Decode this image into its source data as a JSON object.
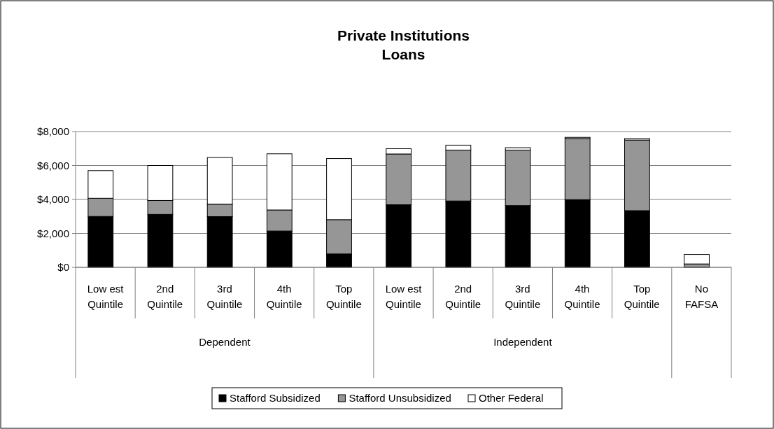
{
  "chart_data": {
    "type": "bar",
    "title": "Private Institutions\nLoans",
    "stacked": true,
    "categories": [
      "Low est Quintile",
      "2nd Quintile",
      "3rd Quintile",
      "4th Quintile",
      "Top Quintile",
      "Low est Quintile",
      "2nd Quintile",
      "3rd Quintile",
      "4th Quintile",
      "Top Quintile",
      "No FAFSA"
    ],
    "series": [
      {
        "name": "Stafford Subsidized",
        "color": "#000000",
        "values": [
          3000,
          3120,
          2990,
          2140,
          790,
          3690,
          3910,
          3640,
          3990,
          3340,
          0
        ]
      },
      {
        "name": "Stafford Unsubsidized",
        "color": "#969696",
        "values": [
          1070,
          820,
          730,
          1240,
          2020,
          2990,
          3000,
          3270,
          3600,
          4160,
          200
        ]
      },
      {
        "name": "Other Federal",
        "color": "#ffffff",
        "values": [
          1630,
          2060,
          2750,
          3310,
          3600,
          310,
          290,
          140,
          70,
          90,
          560
        ]
      }
    ],
    "annotations": [
      "Dependent",
      "Independent"
    ],
    "ylim": [
      0,
      8000
    ],
    "yticks": [
      {
        "value": 0,
        "label": "$0"
      },
      {
        "value": 2000,
        "label": "$2,000"
      },
      {
        "value": 4000,
        "label": "$4,000"
      },
      {
        "value": 6000,
        "label": "$6,000"
      },
      {
        "value": 8000,
        "label": "$8,000"
      }
    ],
    "grid": "y",
    "legend": "bottom"
  }
}
